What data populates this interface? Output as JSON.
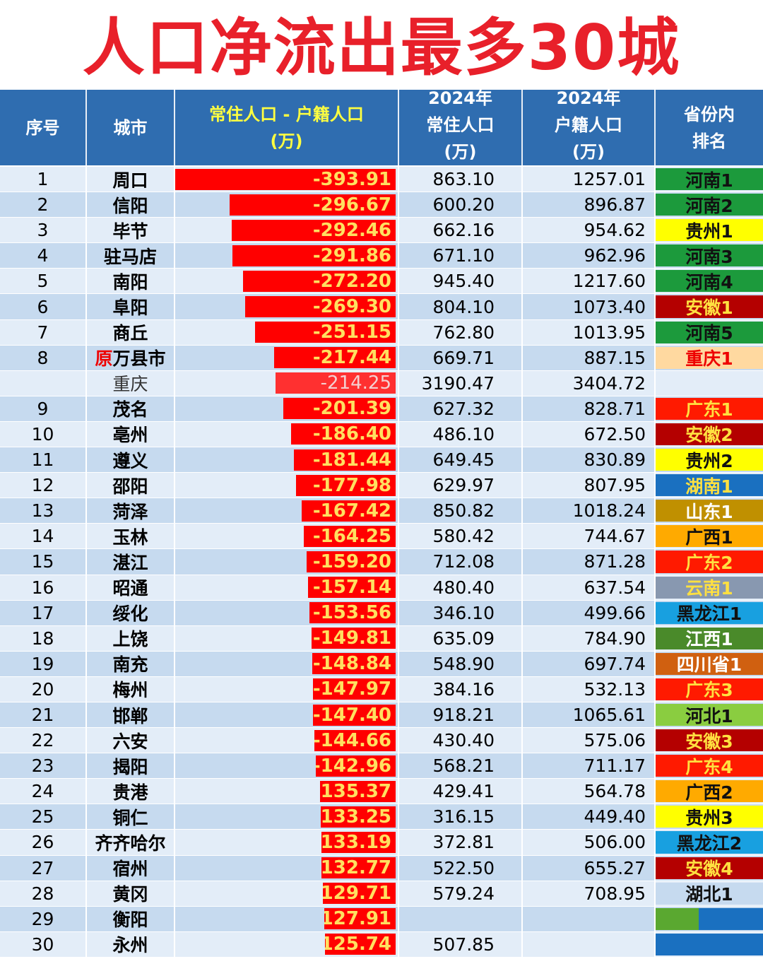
{
  "title": "人口净流出最多30城",
  "headers": {
    "rank": "序号",
    "city": "城市",
    "diff": "常住人口 - 户籍人口",
    "diff_unit": "(万)",
    "res_year": "2024年",
    "res": "常住人口",
    "res_unit": "(万)",
    "reg_year": "2024年",
    "reg": "户籍人口",
    "reg_unit": "(万)",
    "prov_rank": "省份内\n排名"
  },
  "rows": [
    {
      "n": "1",
      "city": "周口",
      "diff": "-393.91",
      "res": "863.10",
      "reg": "1257.01",
      "prov": "河南1",
      "bg": "#1c9a3c",
      "fg": "#111"
    },
    {
      "n": "2",
      "city": "信阳",
      "diff": "-296.67",
      "res": "600.20",
      "reg": "896.87",
      "prov": "河南2",
      "bg": "#1c9a3c",
      "fg": "#111"
    },
    {
      "n": "3",
      "city": "毕节",
      "diff": "-292.46",
      "res": "662.16",
      "reg": "954.62",
      "prov": "贵州1",
      "bg": "#ffff00",
      "fg": "#111"
    },
    {
      "n": "4",
      "city": "驻马店",
      "diff": "-291.86",
      "res": "671.10",
      "reg": "962.96",
      "prov": "河南3",
      "bg": "#1c9a3c",
      "fg": "#111"
    },
    {
      "n": "5",
      "city": "南阳",
      "diff": "-272.20",
      "res": "945.40",
      "reg": "1217.60",
      "prov": "河南4",
      "bg": "#1c9a3c",
      "fg": "#111"
    },
    {
      "n": "6",
      "city": "阜阳",
      "diff": "-269.30",
      "res": "804.10",
      "reg": "1073.40",
      "prov": "安徽1",
      "bg": "#b40000",
      "fg": "#ffe040"
    },
    {
      "n": "7",
      "city": "商丘",
      "diff": "-251.15",
      "res": "762.80",
      "reg": "1013.95",
      "prov": "河南5",
      "bg": "#1c9a3c",
      "fg": "#111"
    },
    {
      "n": "8",
      "city": "万县市",
      "prefix": "原",
      "diff": "-217.44",
      "res": "669.71",
      "reg": "887.15",
      "prov": "重庆1",
      "bg": "#ffd9a0",
      "fg": "#e00"
    },
    {
      "n": "",
      "city": "重庆",
      "diff": "-214.25",
      "res": "3190.47",
      "reg": "3404.72",
      "prov": "",
      "bg": "",
      "fg": "#111",
      "light": true
    },
    {
      "n": "9",
      "city": "茂名",
      "diff": "-201.39",
      "res": "627.32",
      "reg": "828.71",
      "prov": "广东1",
      "bg": "#ff1a00",
      "fg": "#ffe040"
    },
    {
      "n": "10",
      "city": "亳州",
      "diff": "-186.40",
      "res": "486.10",
      "reg": "672.50",
      "prov": "安徽2",
      "bg": "#b40000",
      "fg": "#ffe040"
    },
    {
      "n": "11",
      "city": "遵义",
      "diff": "-181.44",
      "res": "649.45",
      "reg": "830.89",
      "prov": "贵州2",
      "bg": "#ffff00",
      "fg": "#111"
    },
    {
      "n": "12",
      "city": "邵阳",
      "diff": "-177.98",
      "res": "629.97",
      "reg": "807.95",
      "prov": "湖南1",
      "bg": "#1a70c0",
      "fg": "#ffe040"
    },
    {
      "n": "13",
      "city": "菏泽",
      "diff": "-167.42",
      "res": "850.82",
      "reg": "1018.24",
      "prov": "山东1",
      "bg": "#c09000",
      "fg": "#fff"
    },
    {
      "n": "14",
      "city": "玉林",
      "diff": "-164.25",
      "res": "580.42",
      "reg": "744.67",
      "prov": "广西1",
      "bg": "#ffaa00",
      "fg": "#111"
    },
    {
      "n": "15",
      "city": "湛江",
      "diff": "-159.20",
      "res": "712.08",
      "reg": "871.28",
      "prov": "广东2",
      "bg": "#ff1a00",
      "fg": "#ffe040"
    },
    {
      "n": "16",
      "city": "昭通",
      "diff": "-157.14",
      "res": "480.40",
      "reg": "637.54",
      "prov": "云南1",
      "bg": "#8898b0",
      "fg": "#ffe040"
    },
    {
      "n": "17",
      "city": "绥化",
      "diff": "-153.56",
      "res": "346.10",
      "reg": "499.66",
      "prov": "黑龙江1",
      "bg": "#18a0e0",
      "fg": "#111"
    },
    {
      "n": "18",
      "city": "上饶",
      "diff": "-149.81",
      "res": "635.09",
      "reg": "784.90",
      "prov": "江西1",
      "bg": "#4a8a2a",
      "fg": "#fff"
    },
    {
      "n": "19",
      "city": "南充",
      "diff": "-148.84",
      "res": "548.90",
      "reg": "697.74",
      "prov": "四川省1",
      "bg": "#d06010",
      "fg": "#fff"
    },
    {
      "n": "20",
      "city": "梅州",
      "diff": "-147.97",
      "res": "384.16",
      "reg": "532.13",
      "prov": "广东3",
      "bg": "#ff1a00",
      "fg": "#ffe040"
    },
    {
      "n": "21",
      "city": "邯郸",
      "diff": "-147.40",
      "res": "918.21",
      "reg": "1065.61",
      "prov": "河北1",
      "bg": "#8acd40",
      "fg": "#111"
    },
    {
      "n": "22",
      "city": "六安",
      "diff": "-144.66",
      "res": "430.40",
      "reg": "575.06",
      "prov": "安徽3",
      "bg": "#b40000",
      "fg": "#ffe040"
    },
    {
      "n": "23",
      "city": "揭阳",
      "diff": "-142.96",
      "res": "568.21",
      "reg": "711.17",
      "prov": "广东4",
      "bg": "#ff1a00",
      "fg": "#ffe040"
    },
    {
      "n": "24",
      "city": "贵港",
      "diff": "-135.37",
      "res": "429.41",
      "reg": "564.78",
      "prov": "广西2",
      "bg": "#ffaa00",
      "fg": "#111"
    },
    {
      "n": "25",
      "city": "铜仁",
      "diff": "-133.25",
      "res": "316.15",
      "reg": "449.40",
      "prov": "贵州3",
      "bg": "#ffff00",
      "fg": "#111"
    },
    {
      "n": "26",
      "city": "齐齐哈尔",
      "diff": "-133.19",
      "res": "372.81",
      "reg": "506.00",
      "prov": "黑龙江2",
      "bg": "#18a0e0",
      "fg": "#111"
    },
    {
      "n": "27",
      "city": "宿州",
      "diff": "-132.77",
      "res": "522.50",
      "reg": "655.27",
      "prov": "安徽4",
      "bg": "#b40000",
      "fg": "#ffe040"
    },
    {
      "n": "28",
      "city": "黄冈",
      "diff": "-129.71",
      "res": "579.24",
      "reg": "708.95",
      "prov": "湖北1",
      "bg": "#c6daef",
      "fg": "#111"
    },
    {
      "n": "29",
      "city": "衡阳",
      "diff": "-127.91",
      "res": "",
      "reg": "",
      "prov": "",
      "bg": "linear-gradient(90deg,#5aa830 0 40%,#1a70c0 40%)",
      "fg": "#111"
    },
    {
      "n": "30",
      "city": "永州",
      "diff": "-125.74",
      "res": "507.85",
      "reg": "",
      "prov": "",
      "bg": "#1a70c0",
      "fg": "#111"
    }
  ]
}
